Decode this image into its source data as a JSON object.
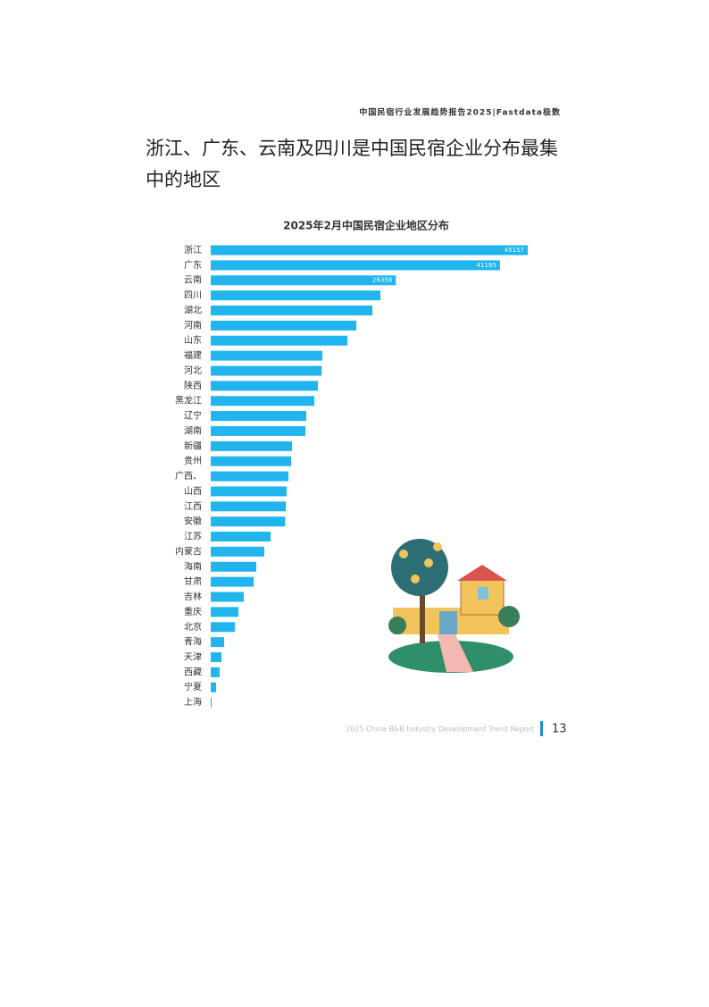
{
  "header": {
    "text": "中国民宿行业发展趋势报告2025|Fastdata极数"
  },
  "headline": {
    "line1": "浙江、广东、云南及四川是中国民宿企业分布最集",
    "line2": "中的地区"
  },
  "chart_data": {
    "type": "barh",
    "title": "2025年2月中国民宿企业地区分布",
    "categories": [
      "浙江",
      "广东",
      "云南",
      "四川",
      "湖北",
      "河南",
      "山东",
      "福建",
      "河北",
      "陕西",
      "黑龙江",
      "辽宁",
      "湖南",
      "新疆",
      "贵州",
      "广西、",
      "山西",
      "江西",
      "安徽",
      "江苏",
      "内蒙古",
      "海南",
      "甘肃",
      "吉林",
      "重庆",
      "北京",
      "青海",
      "天津",
      "西藏",
      "宁夏",
      "上海"
    ],
    "values": [
      45157,
      41195,
      26358,
      24170,
      23030,
      20740,
      19470,
      15900,
      15800,
      15270,
      14760,
      13610,
      13490,
      11580,
      11450,
      11070,
      10810,
      10690,
      10600,
      8520,
      7630,
      6490,
      6110,
      4710,
      3940,
      3430,
      1910,
      1530,
      1270,
      760,
      130
    ],
    "value_labels": [
      "45157",
      "41195",
      "26358",
      null,
      null,
      null,
      null,
      null,
      null,
      null,
      null,
      null,
      null,
      null,
      null,
      null,
      null,
      null,
      null,
      null,
      null,
      null,
      null,
      null,
      null,
      null,
      null,
      null,
      null,
      null,
      null
    ],
    "color": "#21b5ee",
    "xlim": [
      0,
      45157
    ]
  },
  "footer": {
    "text": "2025 China B&B Industry Development Trend Report",
    "page": "13"
  }
}
